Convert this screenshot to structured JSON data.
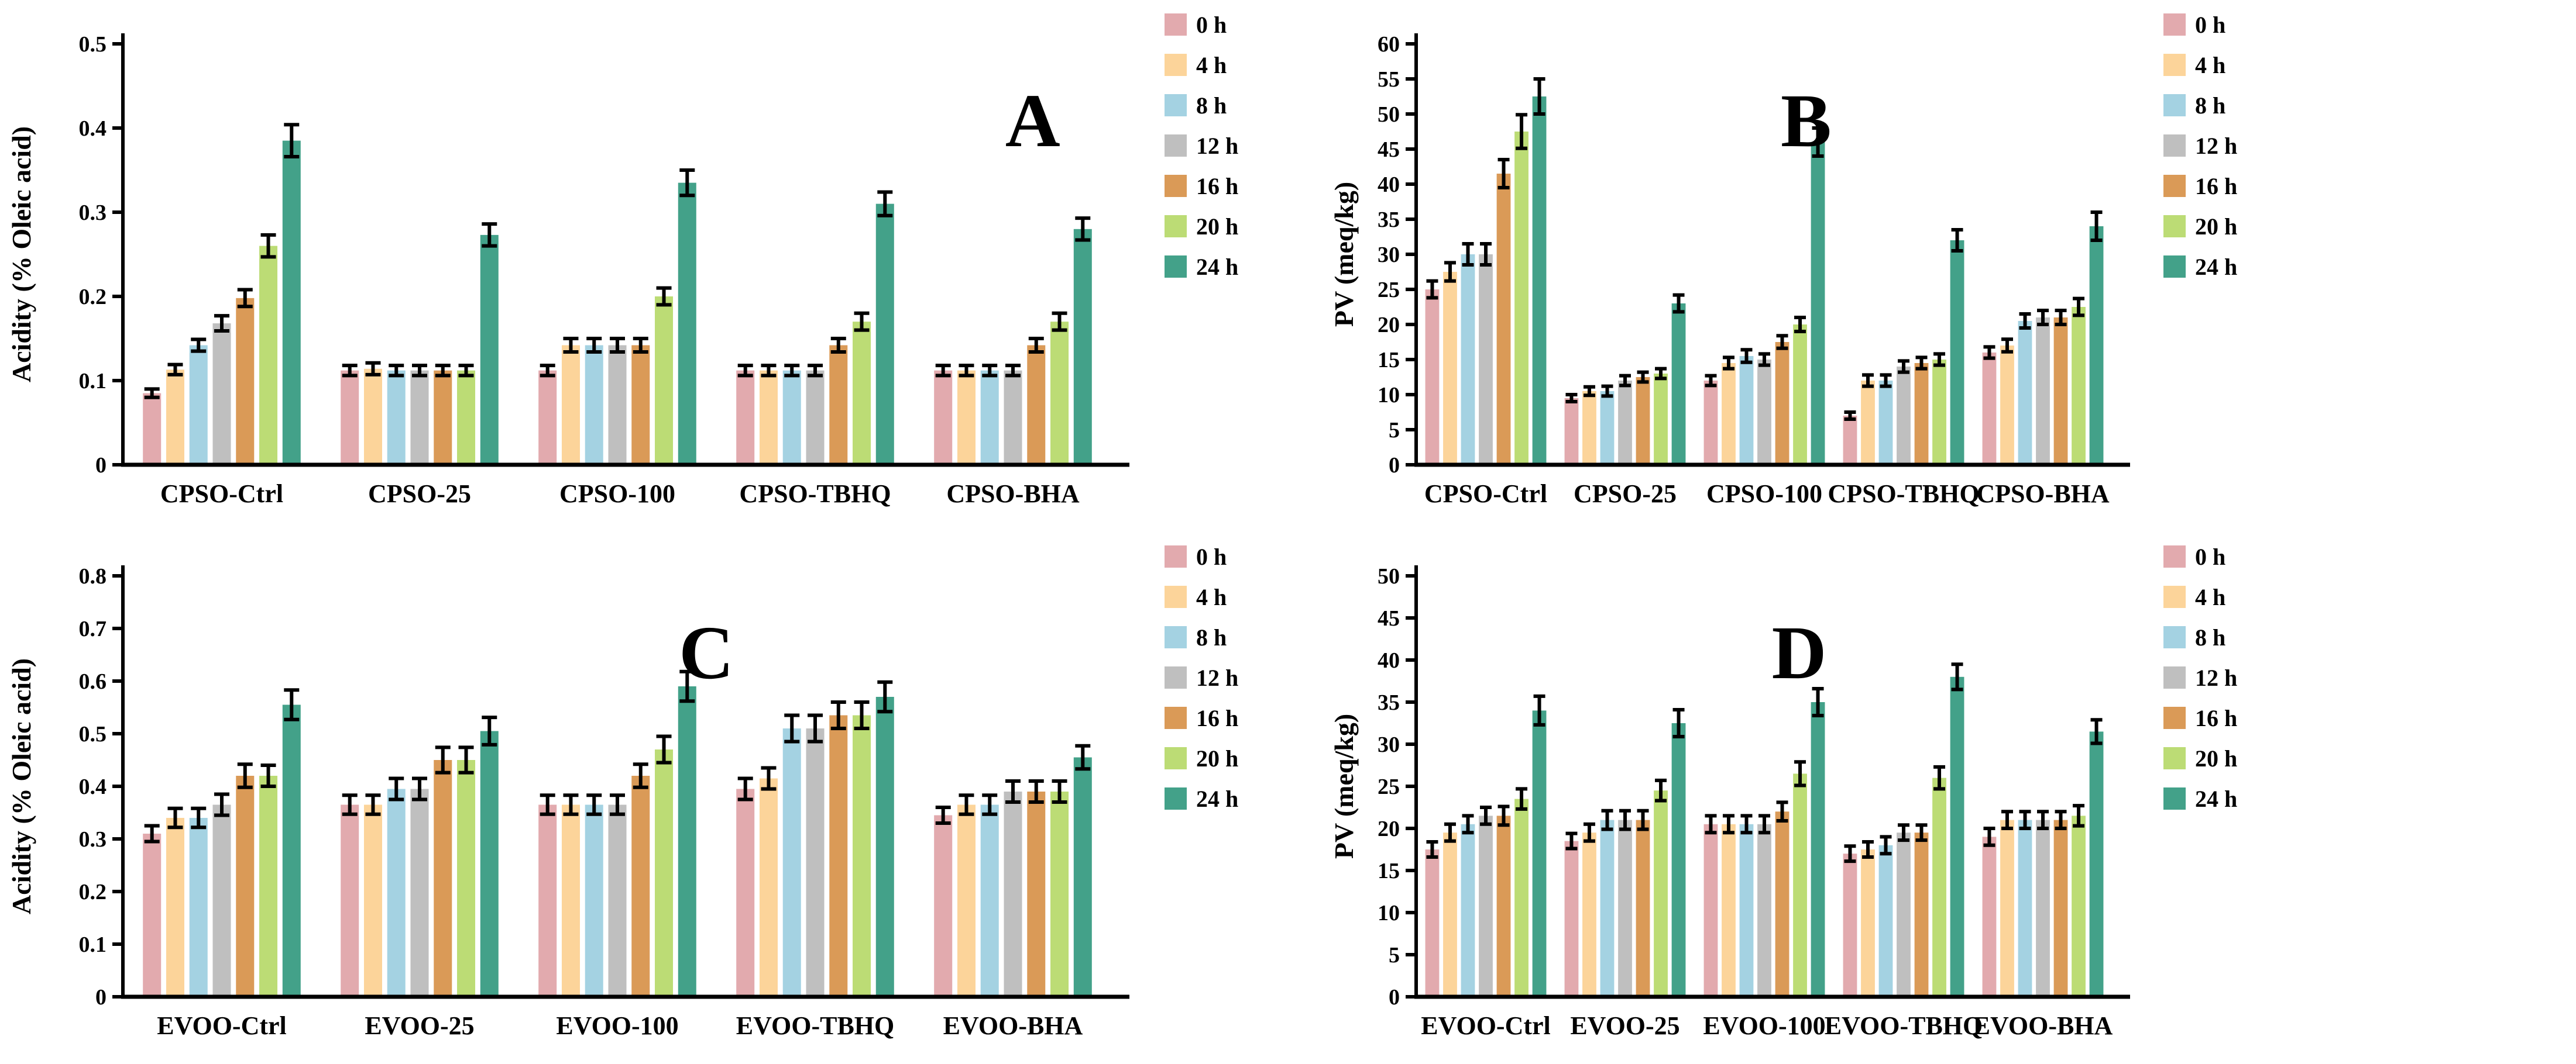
{
  "figure": {
    "background": "#ffffff",
    "time_legend": [
      "0 h",
      "4 h",
      "8 h",
      "12 h",
      "16 h",
      "20 h",
      "24 h"
    ],
    "series_colors": [
      "#E2AAAE",
      "#FCD49A",
      "#A4D2E2",
      "#BFBFBF",
      "#DA9A57",
      "#BCDC75",
      "#43A189"
    ]
  },
  "chart_data": [
    {
      "type": "bar",
      "panel": "A",
      "title": "A",
      "xlabel": "",
      "ylabel": "Acidity (% Oleic acid)",
      "ylim": [
        0,
        0.5
      ],
      "ytick_step": 0.1,
      "tick_decimals": 1,
      "grid": false,
      "legend_position": "right",
      "categories": [
        "CPSO-Ctrl",
        "CPSO-25",
        "CPSO-100",
        "CPSO-TBHQ",
        "CPSO-BHA"
      ],
      "series": [
        {
          "name": "0 h",
          "color": "#E2AAAE",
          "values": [
            0.085,
            0.112,
            0.112,
            0.112,
            0.112
          ],
          "errors": [
            0.005,
            0.006,
            0.006,
            0.006,
            0.006
          ]
        },
        {
          "name": "4 h",
          "color": "#FCD49A",
          "values": [
            0.113,
            0.114,
            0.142,
            0.112,
            0.112
          ],
          "errors": [
            0.006,
            0.007,
            0.008,
            0.006,
            0.006
          ]
        },
        {
          "name": "8 h",
          "color": "#A4D2E2",
          "values": [
            0.142,
            0.112,
            0.142,
            0.112,
            0.112
          ],
          "errors": [
            0.007,
            0.006,
            0.008,
            0.006,
            0.006
          ]
        },
        {
          "name": "12 h",
          "color": "#BFBFBF",
          "values": [
            0.168,
            0.112,
            0.142,
            0.112,
            0.112
          ],
          "errors": [
            0.009,
            0.006,
            0.008,
            0.006,
            0.006
          ]
        },
        {
          "name": "16 h",
          "color": "#DA9A57",
          "values": [
            0.198,
            0.112,
            0.142,
            0.142,
            0.142
          ],
          "errors": [
            0.01,
            0.006,
            0.008,
            0.008,
            0.008
          ]
        },
        {
          "name": "20 h",
          "color": "#BCDC75",
          "values": [
            0.26,
            0.112,
            0.2,
            0.17,
            0.17
          ],
          "errors": [
            0.013,
            0.006,
            0.01,
            0.01,
            0.01
          ]
        },
        {
          "name": "24 h",
          "color": "#43A189",
          "values": [
            0.385,
            0.273,
            0.335,
            0.31,
            0.28
          ],
          "errors": [
            0.019,
            0.013,
            0.015,
            0.014,
            0.013
          ]
        }
      ]
    },
    {
      "type": "bar",
      "panel": "B",
      "title": "B",
      "xlabel": "",
      "ylabel": "PV (meq/kg)",
      "ylim": [
        0,
        60
      ],
      "ytick_step": 5,
      "tick_decimals": 0,
      "grid": false,
      "legend_position": "right",
      "categories": [
        "CPSO-Ctrl",
        "CPSO-25",
        "CPSO-100",
        "CPSO-TBHQ",
        "CPSO-BHA"
      ],
      "series": [
        {
          "name": "0 h",
          "color": "#E2AAAE",
          "values": [
            25,
            9.5,
            12,
            7,
            16
          ],
          "errors": [
            1.2,
            0.5,
            0.7,
            0.5,
            0.8
          ]
        },
        {
          "name": "4 h",
          "color": "#FCD49A",
          "values": [
            27.5,
            10.5,
            14.5,
            12,
            17
          ],
          "errors": [
            1.3,
            0.6,
            0.8,
            0.8,
            0.9
          ]
        },
        {
          "name": "8 h",
          "color": "#A4D2E2",
          "values": [
            30,
            10.5,
            15.5,
            12,
            20.5
          ],
          "errors": [
            1.5,
            0.7,
            0.9,
            0.8,
            1.0
          ]
        },
        {
          "name": "12 h",
          "color": "#BFBFBF",
          "values": [
            30,
            12,
            15,
            14,
            21
          ],
          "errors": [
            1.5,
            0.7,
            0.8,
            0.8,
            1.0
          ]
        },
        {
          "name": "16 h",
          "color": "#DA9A57",
          "values": [
            41.5,
            12.5,
            17.5,
            14.5,
            21
          ],
          "errors": [
            2.0,
            0.7,
            0.9,
            0.8,
            1.0
          ]
        },
        {
          "name": "20 h",
          "color": "#BCDC75",
          "values": [
            47.5,
            13,
            20,
            15,
            22.5
          ],
          "errors": [
            2.4,
            0.7,
            1.0,
            0.8,
            1.2
          ]
        },
        {
          "name": "24 h",
          "color": "#43A189",
          "values": [
            52.5,
            23,
            46,
            32,
            34
          ],
          "errors": [
            2.5,
            1.2,
            2.0,
            1.5,
            2.0
          ]
        }
      ]
    },
    {
      "type": "bar",
      "panel": "C",
      "title": "C",
      "xlabel": "",
      "ylabel": "Acidity (% Oleic acid)",
      "ylim": [
        0,
        0.8
      ],
      "ytick_step": 0.1,
      "tick_decimals": 1,
      "grid": false,
      "legend_position": "right",
      "categories": [
        "EVOO-Ctrl",
        "EVOO-25",
        "EVOO-100",
        "EVOO-TBHQ",
        "EVOO-BHA"
      ],
      "series": [
        {
          "name": "0 h",
          "color": "#E2AAAE",
          "values": [
            0.31,
            0.365,
            0.365,
            0.395,
            0.345
          ],
          "errors": [
            0.015,
            0.018,
            0.018,
            0.02,
            0.015
          ]
        },
        {
          "name": "4 h",
          "color": "#FCD49A",
          "values": [
            0.34,
            0.365,
            0.365,
            0.415,
            0.365
          ],
          "errors": [
            0.018,
            0.018,
            0.018,
            0.02,
            0.018
          ]
        },
        {
          "name": "8 h",
          "color": "#A4D2E2",
          "values": [
            0.34,
            0.395,
            0.365,
            0.51,
            0.365
          ],
          "errors": [
            0.018,
            0.02,
            0.018,
            0.025,
            0.018
          ]
        },
        {
          "name": "12 h",
          "color": "#BFBFBF",
          "values": [
            0.365,
            0.395,
            0.365,
            0.51,
            0.39
          ],
          "errors": [
            0.02,
            0.02,
            0.018,
            0.025,
            0.02
          ]
        },
        {
          "name": "16 h",
          "color": "#DA9A57",
          "values": [
            0.42,
            0.45,
            0.42,
            0.535,
            0.39
          ],
          "errors": [
            0.022,
            0.024,
            0.022,
            0.025,
            0.02
          ]
        },
        {
          "name": "20 h",
          "color": "#BCDC75",
          "values": [
            0.42,
            0.45,
            0.47,
            0.535,
            0.39
          ],
          "errors": [
            0.02,
            0.024,
            0.025,
            0.025,
            0.02
          ]
        },
        {
          "name": "24 h",
          "color": "#43A189",
          "values": [
            0.555,
            0.505,
            0.59,
            0.57,
            0.455
          ],
          "errors": [
            0.028,
            0.026,
            0.028,
            0.028,
            0.022
          ]
        }
      ]
    },
    {
      "type": "bar",
      "panel": "D",
      "title": "D",
      "xlabel": "",
      "ylabel": "PV (meq/kg)",
      "ylim": [
        0,
        50
      ],
      "ytick_step": 5,
      "tick_decimals": 0,
      "grid": false,
      "legend_position": "right",
      "categories": [
        "EVOO-Ctrl",
        "EVOO-25",
        "EVOO-100",
        "EVOO-TBHQ",
        "EVOO-BHA"
      ],
      "series": [
        {
          "name": "0 h",
          "color": "#E2AAAE",
          "values": [
            17.5,
            18.5,
            20.5,
            17,
            19
          ],
          "errors": [
            0.9,
            0.9,
            1.0,
            0.9,
            1.0
          ]
        },
        {
          "name": "4 h",
          "color": "#FCD49A",
          "values": [
            19.5,
            19.5,
            20.5,
            17.5,
            21
          ],
          "errors": [
            1.0,
            1.0,
            1.0,
            0.9,
            1.0
          ]
        },
        {
          "name": "8 h",
          "color": "#A4D2E2",
          "values": [
            20.5,
            21,
            20.5,
            18,
            21
          ],
          "errors": [
            1.0,
            1.1,
            1.0,
            1.0,
            1.0
          ]
        },
        {
          "name": "12 h",
          "color": "#BFBFBF",
          "values": [
            21.5,
            21,
            20.5,
            19.5,
            21
          ],
          "errors": [
            1.0,
            1.1,
            1.0,
            0.9,
            1.0
          ]
        },
        {
          "name": "16 h",
          "color": "#DA9A57",
          "values": [
            21.5,
            21,
            22,
            19.5,
            21
          ],
          "errors": [
            1.1,
            1.1,
            1.1,
            0.9,
            1.0
          ]
        },
        {
          "name": "20 h",
          "color": "#BCDC75",
          "values": [
            23.5,
            24.5,
            26.5,
            26,
            21.5
          ],
          "errors": [
            1.2,
            1.2,
            1.4,
            1.3,
            1.2
          ]
        },
        {
          "name": "24 h",
          "color": "#43A189",
          "values": [
            34,
            32.5,
            35,
            38,
            31.5
          ],
          "errors": [
            1.7,
            1.6,
            1.6,
            1.5,
            1.4
          ]
        }
      ]
    }
  ]
}
